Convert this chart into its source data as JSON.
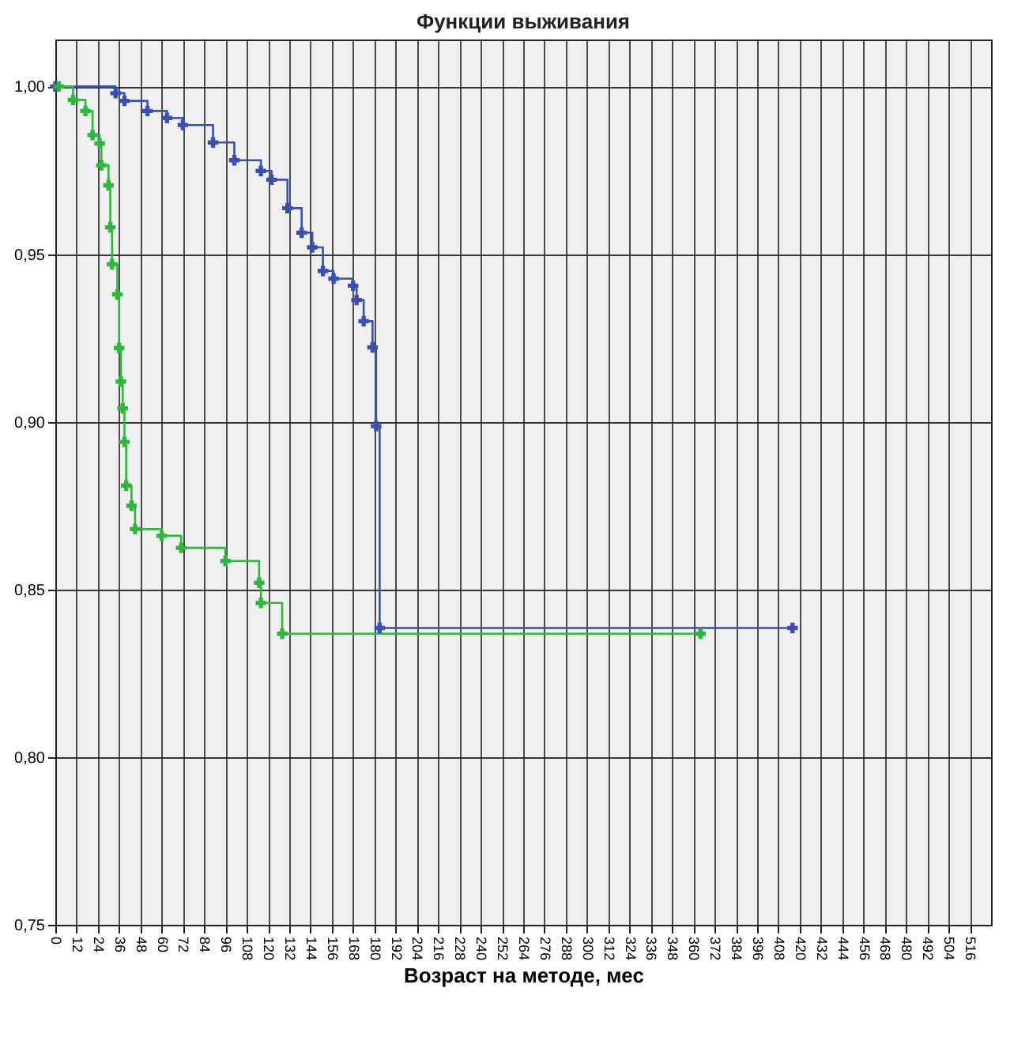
{
  "chart_data": {
    "type": "step",
    "title": "Функции выживания",
    "xlabel": "Возраст на методе, мес",
    "xlim": [
      0,
      528
    ],
    "xticks": [
      0,
      12,
      24,
      36,
      48,
      60,
      72,
      84,
      96,
      108,
      120,
      132,
      144,
      156,
      168,
      180,
      192,
      204,
      216,
      228,
      240,
      252,
      264,
      276,
      288,
      300,
      312,
      324,
      336,
      348,
      360,
      372,
      384,
      396,
      408,
      420,
      432,
      444,
      456,
      468,
      480,
      492,
      504,
      516
    ],
    "ylim": [
      0.75,
      1.014
    ],
    "yticks": [
      {
        "value": 0.75,
        "label": "0,75"
      },
      {
        "value": 0.8,
        "label": "0,80"
      },
      {
        "value": 0.85,
        "label": "0,85"
      },
      {
        "value": 0.9,
        "label": "0,90"
      },
      {
        "value": 0.95,
        "label": "0,95"
      },
      {
        "value": 1.0,
        "label": "1,00"
      }
    ],
    "grid": true,
    "marker": "cross",
    "series": [
      {
        "color": "#3a4fb0",
        "x": [
          0,
          34,
          39,
          52,
          63,
          72,
          89,
          101,
          116,
          122,
          131,
          139,
          145,
          151,
          157,
          168,
          170,
          174,
          179,
          181,
          183,
          416
        ],
        "values": [
          1.0,
          0.998,
          0.9957,
          0.9927,
          0.9906,
          0.9885,
          0.9833,
          0.978,
          0.9748,
          0.9722,
          0.9637,
          0.9564,
          0.952,
          0.945,
          0.9427,
          0.9406,
          0.9363,
          0.93,
          0.9222,
          0.8987,
          0.8385,
          0.8385
        ]
      },
      {
        "color": "#2db83d",
        "x": [
          2,
          10,
          17,
          21,
          25,
          26,
          30,
          31,
          32,
          35,
          36,
          37,
          38,
          39,
          40,
          43,
          45,
          60,
          71,
          96,
          115,
          116,
          128,
          364
        ],
        "values": [
          1.0,
          0.996,
          0.9927,
          0.9855,
          0.983,
          0.9765,
          0.9705,
          0.958,
          0.947,
          0.938,
          0.922,
          0.912,
          0.904,
          0.894,
          0.881,
          0.875,
          0.868,
          0.866,
          0.8624,
          0.8585,
          0.852,
          0.846,
          0.8368,
          0.8368
        ]
      }
    ]
  }
}
